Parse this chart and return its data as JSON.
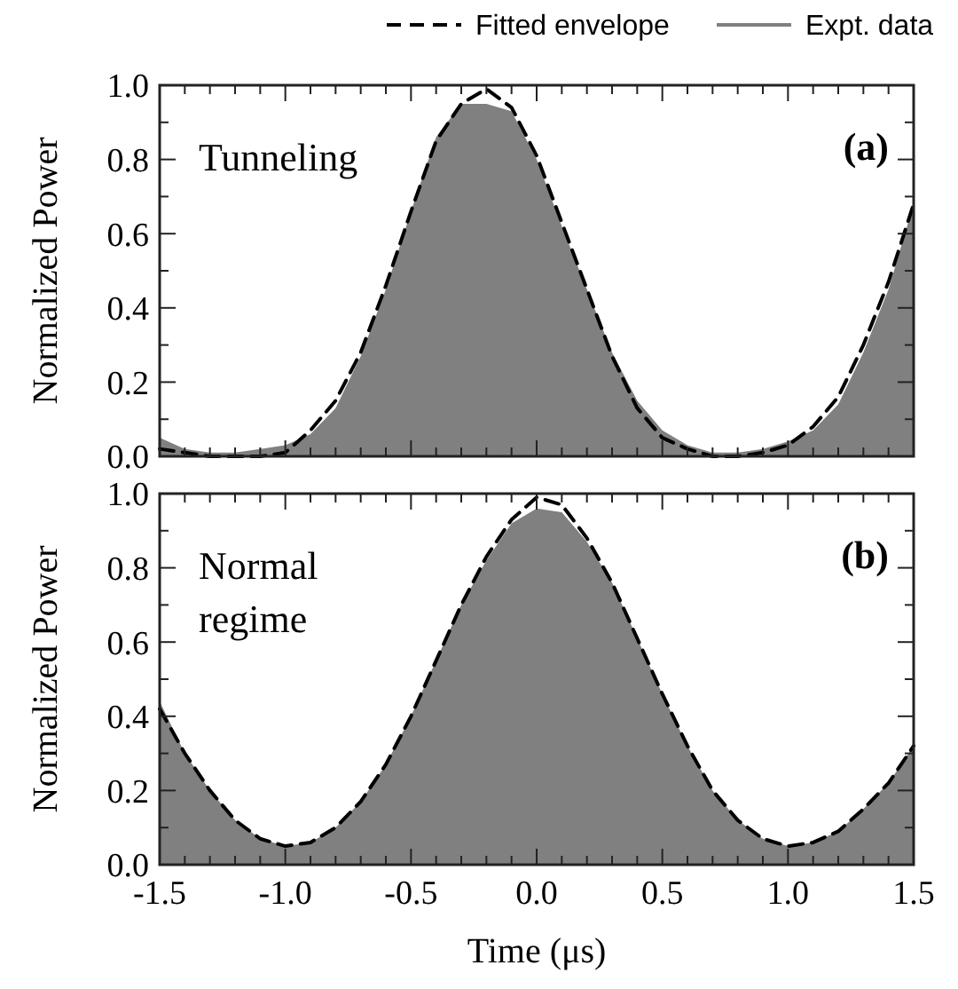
{
  "chart_data": [
    {
      "type": "area",
      "ylabel": "Normalized Power",
      "annotations": [
        "Tunneling",
        "(a)"
      ],
      "legend": "top",
      "tick_labels": "y",
      "x": [
        -1.5,
        -1.4,
        -1.3,
        -1.2,
        -1.1,
        -1.0,
        -0.9,
        -0.8,
        -0.7,
        -0.6,
        -0.5,
        -0.4,
        -0.3,
        -0.2,
        -0.1,
        0.0,
        0.1,
        0.2,
        0.3,
        0.4,
        0.5,
        0.6,
        0.7,
        0.8,
        0.9,
        1.0,
        1.1,
        1.2,
        1.3,
        1.4,
        1.5
      ],
      "series": [
        {
          "name": "Expt. data",
          "type": "area",
          "color": "#808080",
          "values": [
            0.05,
            0.02,
            0.01,
            0.01,
            0.02,
            0.03,
            0.06,
            0.13,
            0.27,
            0.45,
            0.66,
            0.86,
            0.95,
            0.95,
            0.93,
            0.8,
            0.62,
            0.45,
            0.28,
            0.15,
            0.07,
            0.03,
            0.01,
            0.01,
            0.02,
            0.04,
            0.07,
            0.14,
            0.28,
            0.45,
            0.68
          ]
        },
        {
          "name": "Fitted envelope",
          "type": "line",
          "color": "#000000",
          "line_style": "dashed",
          "values": [
            0.02,
            0.01,
            0.0,
            0.0,
            0.0,
            0.01,
            0.07,
            0.15,
            0.28,
            0.46,
            0.66,
            0.85,
            0.95,
            0.99,
            0.94,
            0.81,
            0.63,
            0.45,
            0.27,
            0.13,
            0.05,
            0.02,
            0.0,
            0.0,
            0.01,
            0.03,
            0.08,
            0.16,
            0.3,
            0.47,
            0.68
          ]
        }
      ],
      "xlim": [
        -1.5,
        1.5
      ],
      "xticks": [
        {
          "value": -1.5,
          "label": null
        },
        {
          "value": -1.4,
          "label": null
        },
        {
          "value": -1.3,
          "label": null
        },
        {
          "value": -1.2,
          "label": null
        },
        {
          "value": -1.1,
          "label": null
        },
        {
          "value": -1.0,
          "label": null
        },
        {
          "value": -0.9,
          "label": null
        },
        {
          "value": -0.8,
          "label": null
        },
        {
          "value": -0.7,
          "label": null
        },
        {
          "value": -0.6,
          "label": null
        },
        {
          "value": -0.5,
          "label": null
        },
        {
          "value": -0.4,
          "label": null
        },
        {
          "value": -0.3,
          "label": null
        },
        {
          "value": -0.2,
          "label": null
        },
        {
          "value": -0.1,
          "label": null
        },
        {
          "value": 0,
          "label": null
        },
        {
          "value": 0.1,
          "label": null
        },
        {
          "value": 0.2,
          "label": null
        },
        {
          "value": 0.3,
          "label": null
        },
        {
          "value": 0.4,
          "label": null
        },
        {
          "value": 0.5,
          "label": null
        },
        {
          "value": 0.6,
          "label": null
        },
        {
          "value": 0.7,
          "label": null
        },
        {
          "value": 0.8,
          "label": null
        },
        {
          "value": 0.9,
          "label": null
        },
        {
          "value": 1.0,
          "label": null
        },
        {
          "value": 1.1,
          "label": null
        },
        {
          "value": 1.2,
          "label": null
        },
        {
          "value": 1.3,
          "label": null
        },
        {
          "value": 1.4,
          "label": null
        },
        {
          "value": 1.5,
          "label": null
        }
      ],
      "ylim": [
        0,
        1
      ],
      "yticks": [
        {
          "value": 0,
          "label": "0.0"
        },
        {
          "value": 0.1,
          "label": null
        },
        {
          "value": 0.2,
          "label": "0.2"
        },
        {
          "value": 0.3,
          "label": null
        },
        {
          "value": 0.4,
          "label": "0.4"
        },
        {
          "value": 0.5,
          "label": null
        },
        {
          "value": 0.6,
          "label": "0.6"
        },
        {
          "value": 0.7,
          "label": null
        },
        {
          "value": 0.8,
          "label": "0.8"
        },
        {
          "value": 0.9,
          "label": null
        },
        {
          "value": 1,
          "label": "1.0"
        }
      ]
    },
    {
      "type": "area",
      "ylabel": "Normalized Power",
      "xlabel": "Time (μs)",
      "annotations": [
        "Normal regime",
        "(b)"
      ],
      "x": [
        -1.5,
        -1.4,
        -1.3,
        -1.2,
        -1.1,
        -1.0,
        -0.9,
        -0.8,
        -0.7,
        -0.6,
        -0.5,
        -0.4,
        -0.3,
        -0.2,
        -0.1,
        0.0,
        0.1,
        0.2,
        0.3,
        0.4,
        0.5,
        0.6,
        0.7,
        0.8,
        0.9,
        1.0,
        1.1,
        1.2,
        1.3,
        1.4,
        1.5
      ],
      "series": [
        {
          "type": "area",
          "color": "#808080",
          "values": [
            0.44,
            0.3,
            0.2,
            0.12,
            0.07,
            0.05,
            0.06,
            0.1,
            0.17,
            0.27,
            0.4,
            0.55,
            0.7,
            0.82,
            0.92,
            0.96,
            0.95,
            0.87,
            0.76,
            0.61,
            0.46,
            0.32,
            0.2,
            0.12,
            0.07,
            0.05,
            0.06,
            0.09,
            0.15,
            0.22,
            0.32
          ]
        },
        {
          "type": "line",
          "color": "#000000",
          "line_style": "dashed",
          "values": [
            0.42,
            0.3,
            0.2,
            0.12,
            0.07,
            0.05,
            0.06,
            0.1,
            0.17,
            0.27,
            0.4,
            0.55,
            0.7,
            0.83,
            0.93,
            0.99,
            0.97,
            0.88,
            0.76,
            0.61,
            0.46,
            0.32,
            0.2,
            0.12,
            0.07,
            0.05,
            0.06,
            0.09,
            0.15,
            0.22,
            0.32
          ]
        }
      ],
      "xlim": [
        -1.5,
        1.5
      ],
      "xticks": [
        {
          "value": -1.5,
          "label": "-1.5"
        },
        {
          "value": -1.4,
          "label": null
        },
        {
          "value": -1.3,
          "label": null
        },
        {
          "value": -1.2,
          "label": null
        },
        {
          "value": -1.1,
          "label": null
        },
        {
          "value": -1.0,
          "label": "-1.0"
        },
        {
          "value": -0.9,
          "label": null
        },
        {
          "value": -0.8,
          "label": null
        },
        {
          "value": -0.7,
          "label": null
        },
        {
          "value": -0.6,
          "label": null
        },
        {
          "value": -0.5,
          "label": "-0.5"
        },
        {
          "value": -0.4,
          "label": null
        },
        {
          "value": -0.3,
          "label": null
        },
        {
          "value": -0.2,
          "label": null
        },
        {
          "value": -0.1,
          "label": null
        },
        {
          "value": 0,
          "label": "0.0"
        },
        {
          "value": 0.1,
          "label": null
        },
        {
          "value": 0.2,
          "label": null
        },
        {
          "value": 0.3,
          "label": null
        },
        {
          "value": 0.4,
          "label": null
        },
        {
          "value": 0.5,
          "label": "0.5"
        },
        {
          "value": 0.6,
          "label": null
        },
        {
          "value": 0.7,
          "label": null
        },
        {
          "value": 0.8,
          "label": null
        },
        {
          "value": 0.9,
          "label": null
        },
        {
          "value": 1.0,
          "label": "1.0"
        },
        {
          "value": 1.1,
          "label": null
        },
        {
          "value": 1.2,
          "label": null
        },
        {
          "value": 1.3,
          "label": null
        },
        {
          "value": 1.4,
          "label": null
        },
        {
          "value": 1.5,
          "label": "1.5"
        }
      ],
      "ylim": [
        0,
        1
      ],
      "yticks": [
        {
          "value": 0,
          "label": "0.0"
        },
        {
          "value": 0.1,
          "label": null
        },
        {
          "value": 0.2,
          "label": "0.2"
        },
        {
          "value": 0.3,
          "label": null
        },
        {
          "value": 0.4,
          "label": "0.4"
        },
        {
          "value": 0.5,
          "label": null
        },
        {
          "value": 0.6,
          "label": "0.6"
        },
        {
          "value": 0.7,
          "label": null
        },
        {
          "value": 0.8,
          "label": "0.8"
        },
        {
          "value": 0.9,
          "label": null
        },
        {
          "value": 1,
          "label": "1.0"
        }
      ]
    }
  ]
}
